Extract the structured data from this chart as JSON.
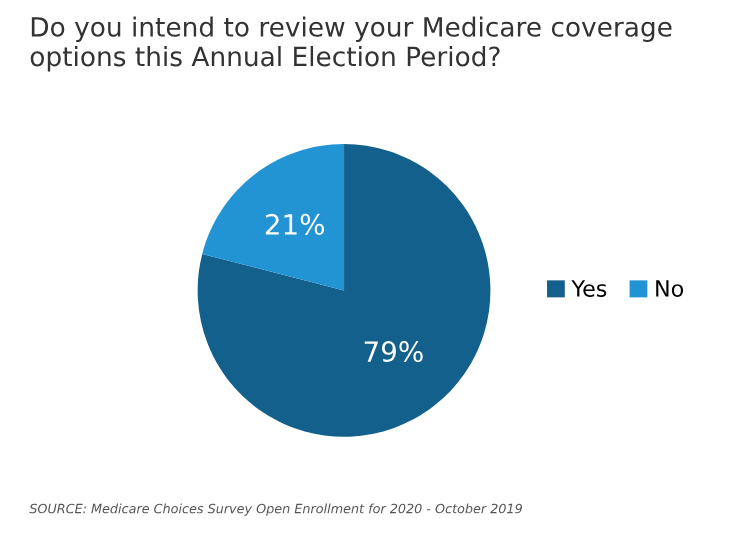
{
  "chart_data": {
    "type": "pie",
    "title": "Do you intend to review your Medicare coverage\noptions this Annual Election Period?",
    "categories": [
      "Yes",
      "No"
    ],
    "values": [
      79,
      21
    ],
    "colors": [
      "#14608c",
      "#2293d3"
    ],
    "value_labels": [
      "79%",
      "21%"
    ],
    "legend": "right",
    "annotations": [
      "SOURCE: Medicare Choices Survey Open Enrollment for 2020 - October 2019"
    ]
  }
}
